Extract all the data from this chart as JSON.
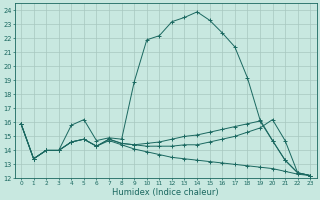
{
  "xlabel": "Humidex (Indice chaleur)",
  "background_color": "#c8e8e0",
  "grid_color": "#a8c8c0",
  "line_color": "#1a6860",
  "ylim": [
    12,
    24.5
  ],
  "xlim": [
    -0.5,
    23.5
  ],
  "yticks": [
    12,
    13,
    14,
    15,
    16,
    17,
    18,
    19,
    20,
    21,
    22,
    23,
    24
  ],
  "xticks": [
    0,
    1,
    2,
    3,
    4,
    5,
    6,
    7,
    8,
    9,
    10,
    11,
    12,
    13,
    14,
    15,
    16,
    17,
    18,
    19,
    20,
    21,
    22,
    23
  ],
  "line1_x": [
    0,
    1,
    2,
    3,
    4,
    5,
    6,
    7,
    8,
    9,
    10,
    11,
    12,
    13,
    14,
    15,
    16,
    17,
    18,
    19,
    20,
    21,
    22,
    23
  ],
  "line1_y": [
    15.9,
    13.4,
    14.0,
    14.0,
    15.8,
    16.2,
    14.7,
    14.9,
    14.8,
    18.9,
    21.9,
    22.2,
    23.2,
    23.5,
    23.9,
    23.3,
    22.4,
    21.4,
    19.2,
    16.2,
    14.7,
    13.3,
    12.4,
    12.2
  ],
  "line2_x": [
    0,
    1,
    2,
    3,
    4,
    5,
    6,
    7,
    8,
    9,
    10,
    11,
    12,
    13,
    14,
    15,
    16,
    17,
    18,
    19,
    20,
    21,
    22,
    23
  ],
  "line2_y": [
    15.9,
    13.4,
    14.0,
    14.0,
    14.6,
    14.8,
    14.3,
    14.8,
    14.5,
    14.4,
    14.3,
    14.3,
    14.3,
    14.4,
    14.4,
    14.6,
    14.8,
    15.0,
    15.3,
    15.6,
    16.2,
    14.7,
    12.4,
    12.2
  ],
  "line3_x": [
    0,
    1,
    2,
    3,
    4,
    5,
    6,
    7,
    8,
    9,
    10,
    11,
    12,
    13,
    14,
    15,
    16,
    17,
    18,
    19,
    20,
    21,
    22,
    23
  ],
  "line3_y": [
    15.9,
    13.4,
    14.0,
    14.0,
    14.6,
    14.8,
    14.3,
    14.7,
    14.4,
    14.1,
    13.9,
    13.7,
    13.5,
    13.4,
    13.3,
    13.2,
    13.1,
    13.0,
    12.9,
    12.8,
    12.7,
    12.5,
    12.3,
    12.2
  ],
  "line4_x": [
    0,
    1,
    2,
    3,
    4,
    5,
    6,
    7,
    8,
    9,
    10,
    11,
    12,
    13,
    14,
    15,
    16,
    17,
    18,
    19,
    20,
    21,
    22,
    23
  ],
  "line4_y": [
    15.9,
    13.4,
    14.0,
    14.0,
    14.6,
    14.8,
    14.3,
    14.8,
    14.5,
    14.4,
    14.5,
    14.6,
    14.8,
    15.0,
    15.1,
    15.3,
    15.5,
    15.7,
    15.9,
    16.1,
    14.7,
    13.3,
    12.4,
    12.2
  ]
}
